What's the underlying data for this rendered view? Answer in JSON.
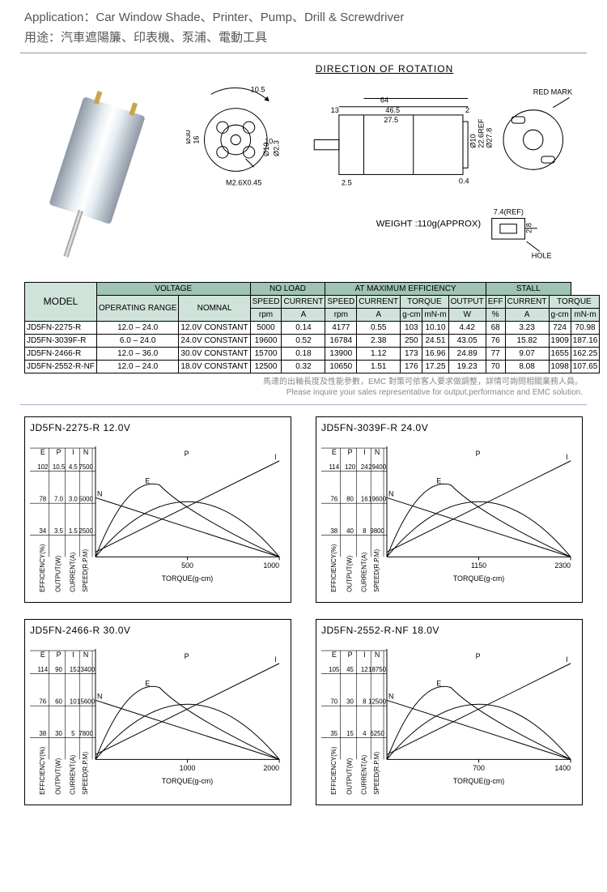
{
  "header": {
    "app_label_en": "Application：Car Window Shade、Printer、Pump、Drill & Screwdriver",
    "app_label_zh": "用途：汽車遮陽簾、印表機、泵浦、電動工具"
  },
  "schematic": {
    "title": "DIRECTION  OF  ROTATION",
    "weight": "WEIGHT :110g(APPROX)",
    "dims": {
      "D30": "Ø30",
      "D10_2": "Ø10",
      "D2_3": "Ø2.3",
      "L10_5": "10.5",
      "L16": "16",
      "L10": "10",
      "Mthread": "M2.6X0.45",
      "L64": "64",
      "L13": "13",
      "L46_5": "46.5",
      "L27_5": "27.5",
      "L2": "2",
      "D10": "Ø10",
      "D22_6": "22.6REF",
      "D27_8": "Ø27.8",
      "L7_4": "7.4(REF)",
      "L0_4": "0.4",
      "L2_5": "2.5",
      "L2_8": "2.8",
      "redmark": "RED MARK",
      "hole": "HOLE"
    }
  },
  "spec_table": {
    "group_headers": [
      "VOLTAGE",
      "NO LOAD",
      "AT MAXIMUM EFFICIENCY",
      "STALL"
    ],
    "model_header": "MODEL",
    "sub_headers_1": [
      "OPERATING RANGE",
      "NOMNAL",
      "SPEED",
      "CURRENT",
      "SPEED",
      "CURRENT",
      "TORQUE",
      "OUTPUT",
      "EFF",
      "CURRENT",
      "TORQUE"
    ],
    "sub_headers_2": [
      "rpm",
      "A",
      "rpm",
      "A",
      "g-cm",
      "mN-m",
      "W",
      "%",
      "A",
      "g-cm",
      "mN-m"
    ],
    "rows": [
      [
        "JD5FN-2275-R",
        "12.0 – 24.0",
        "12.0V CONSTANT",
        "5000",
        "0.14",
        "4177",
        "0.55",
        "103",
        "10.10",
        "4.42",
        "68",
        "3.23",
        "724",
        "70.98"
      ],
      [
        "JD5FN-3039F-R",
        "6.0 – 24.0",
        "24.0V CONSTANT",
        "19600",
        "0.52",
        "16784",
        "2.38",
        "250",
        "24.51",
        "43.05",
        "76",
        "15.82",
        "1909",
        "187.16"
      ],
      [
        "JD5FN-2466-R",
        "12.0 – 36.0",
        "30.0V CONSTANT",
        "15700",
        "0.18",
        "13900",
        "1.12",
        "173",
        "16.96",
        "24.89",
        "77",
        "9.07",
        "1655",
        "162.25"
      ],
      [
        "JD5FN-2552-R-NF",
        "12.0 – 24.0",
        "18.0V CONSTANT",
        "12500",
        "0.32",
        "10650",
        "1.51",
        "176",
        "17.25",
        "19.23",
        "70",
        "8.08",
        "1098",
        "107.65"
      ]
    ],
    "note_zh": "馬達的出軸長度及性能參數，EMC 對策可依客人要求做調整，詳情可詢問相關業務人員。",
    "note_en": "Please inquire your sales representative for output,performance and EMC solution."
  },
  "charts": [
    {
      "title": "JD5FN-2275-R   12.0V",
      "y_heads": [
        "E",
        "P",
        "I",
        "N"
      ],
      "y_rows": [
        [
          "102",
          "10.5",
          "4.5",
          "7500"
        ],
        [
          "78",
          "7.0",
          "3.0",
          "5000"
        ],
        [
          "34",
          "3.5",
          "1.5",
          "2500"
        ]
      ],
      "x_ticks": [
        "500",
        "1000"
      ],
      "x_label": "TORQUE(g-cm)",
      "y_axis_names": [
        "EFFICIENCY(%)",
        "OUTPUT(W)",
        "CURRENT(A)",
        "SPEED(R.P.M)"
      ],
      "colors": {
        "line": "#000",
        "bg": "#fff",
        "grid": "#000"
      },
      "markers": {
        "N": "N",
        "E": "E",
        "P": "P",
        "I": "I"
      }
    },
    {
      "title": "JD5FN-3039F-R   24.0V",
      "y_heads": [
        "E",
        "P",
        "I",
        "N"
      ],
      "y_rows": [
        [
          "114",
          "120",
          "24",
          "29400"
        ],
        [
          "76",
          "80",
          "16",
          "19600"
        ],
        [
          "38",
          "40",
          "8",
          "9800"
        ]
      ],
      "x_ticks": [
        "1150",
        "2300"
      ],
      "x_label": "TORQUE(g-cm)",
      "y_axis_names": [
        "EFFICIENCY(%)",
        "OUTPUT(W)",
        "CURRENT(A)",
        "SPEED(R.P.M)"
      ],
      "colors": {
        "line": "#000",
        "bg": "#fff",
        "grid": "#000"
      },
      "markers": {
        "N": "N",
        "E": "E",
        "P": "P",
        "I": "I"
      }
    },
    {
      "title": "JD5FN-2466-R   30.0V",
      "y_heads": [
        "E",
        "P",
        "I",
        "N"
      ],
      "y_rows": [
        [
          "114",
          "90",
          "15",
          "23400"
        ],
        [
          "76",
          "60",
          "10",
          "15600"
        ],
        [
          "38",
          "30",
          "5",
          "7800"
        ]
      ],
      "x_ticks": [
        "1000",
        "2000"
      ],
      "x_label": "TORQUE(g-cm)",
      "y_axis_names": [
        "EFFICIENCY(%)",
        "OUTPUT(W)",
        "CURRENT(A)",
        "SPEED(R.P.M)"
      ],
      "colors": {
        "line": "#000",
        "bg": "#fff",
        "grid": "#000"
      },
      "markers": {
        "N": "N",
        "E": "E",
        "P": "P",
        "I": "I"
      }
    },
    {
      "title": "JD5FN-2552-R-NF   18.0V",
      "y_heads": [
        "E",
        "P",
        "I",
        "N"
      ],
      "y_rows": [
        [
          "105",
          "45",
          "12",
          "18750"
        ],
        [
          "70",
          "30",
          "8",
          "12500"
        ],
        [
          "35",
          "15",
          "4",
          "6250"
        ]
      ],
      "x_ticks": [
        "700",
        "1400"
      ],
      "x_label": "TORQUE(g-cm)",
      "y_axis_names": [
        "EFFICIENCY(%)",
        "OUTPUT(W)",
        "CURRENT(A)",
        "SPEED(R.P.M)"
      ],
      "colors": {
        "line": "#000",
        "bg": "#fff",
        "grid": "#000"
      },
      "markers": {
        "N": "N",
        "E": "E",
        "P": "P",
        "I": "I"
      }
    }
  ],
  "colors": {
    "header_bg_dark": "#9fc4b4",
    "header_bg_light": "#cfe3da",
    "border": "#000000",
    "divider": "#aabbcc",
    "text_muted": "#888888"
  }
}
